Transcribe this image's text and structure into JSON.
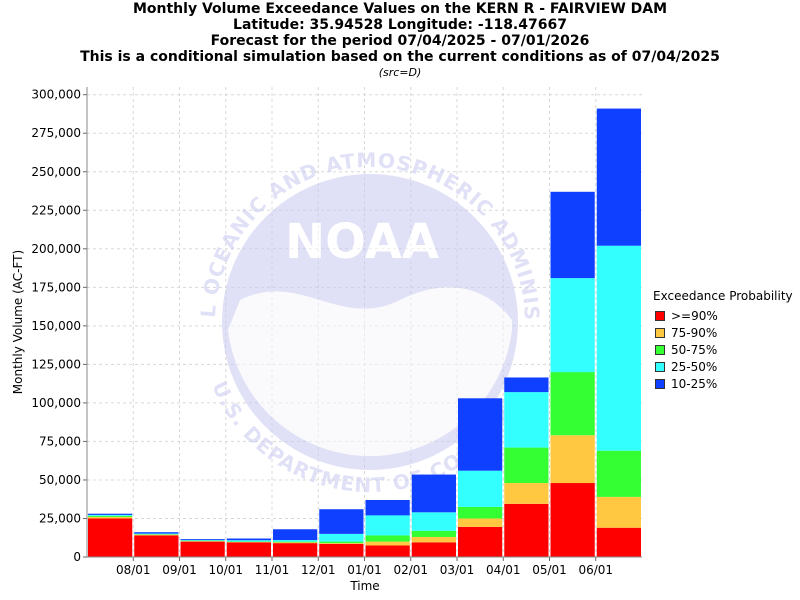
{
  "header": {
    "title_line1": "Monthly Volume Exceedance Values on the KERN R - FAIRVIEW DAM",
    "title_line2": "Latitude: 35.94528 Longitude: -118.47667",
    "title_line3": "Forecast for the period 07/04/2025 - 07/01/2026",
    "title_line4": "This is a conditional simulation based on the current conditions as of 07/04/2025",
    "src_note": "(src=D)"
  },
  "watermark": {
    "logo_text": "NOAA",
    "ring_text_top": "NATIONAL OCEANIC AND ATMOSPHERIC ADMINISTRATION",
    "ring_text_bottom": "U.S. DEPARTMENT OF COMMERCE"
  },
  "legend": {
    "title": "Exceedance Probability"
  },
  "chart_data": {
    "type": "bar",
    "stacked": true,
    "xlabel": "Time",
    "ylabel": "Monthly Volume (AC-FT)",
    "ylim": [
      0,
      305000
    ],
    "y_ticks": [
      "0",
      "25,000",
      "50,000",
      "75,000",
      "100,000",
      "125,000",
      "150,000",
      "175,000",
      "200,000",
      "225,000",
      "250,000",
      "275,000",
      "300,000"
    ],
    "y_tick_values": [
      0,
      25000,
      50000,
      75000,
      100000,
      125000,
      150000,
      175000,
      200000,
      225000,
      250000,
      275000,
      300000
    ],
    "x_tick_labels": [
      "08/01",
      "09/01",
      "10/01",
      "11/01",
      "12/01",
      "01/01",
      "02/01",
      "03/01",
      "04/01",
      "05/01",
      "06/01"
    ],
    "grid": true,
    "legend_position": "right",
    "categories": [
      "07/2025",
      "08/2025",
      "09/2025",
      "10/2025",
      "11/2025",
      "12/2025",
      "01/2026",
      "02/2026",
      "03/2026",
      "04/2026",
      "05/2026",
      "06/2026"
    ],
    "series": [
      {
        "name": ">=90%",
        "color": "#ff0000",
        "values": [
          25000,
          14000,
          10000,
          9500,
          9000,
          8500,
          7500,
          9500,
          19500,
          34500,
          48000,
          19000
        ]
      },
      {
        "name": "75-90%",
        "color": "#ffc840",
        "values": [
          1000,
          500,
          300,
          300,
          500,
          500,
          2500,
          3500,
          5500,
          13500,
          31000,
          20000
        ]
      },
      {
        "name": "50-75%",
        "color": "#33ff33",
        "values": [
          700,
          300,
          300,
          300,
          500,
          1000,
          4000,
          4000,
          7500,
          23000,
          41000,
          30000
        ]
      },
      {
        "name": "25-50%",
        "color": "#33ffff",
        "values": [
          600,
          400,
          400,
          800,
          1000,
          5000,
          13000,
          12000,
          23500,
          36000,
          61000,
          133000
        ]
      },
      {
        "name": "10-25%",
        "color": "#1040ff",
        "values": [
          800,
          900,
          600,
          1100,
          7000,
          16000,
          10000,
          24500,
          47000,
          9500,
          56000,
          89000
        ]
      }
    ]
  }
}
